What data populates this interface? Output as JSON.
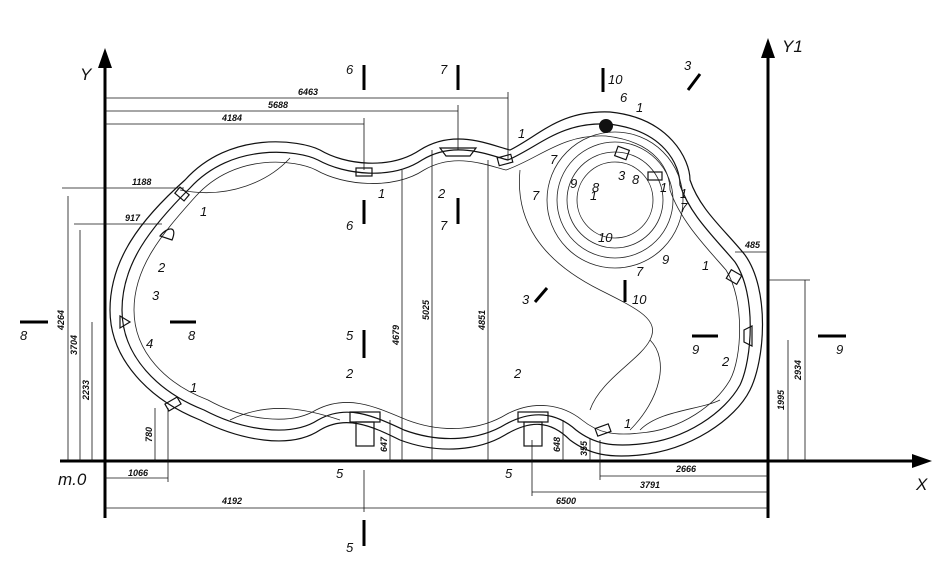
{
  "axes": {
    "x_label": "X",
    "y_label": "Y",
    "y1_label": "Y1",
    "origin_label": "m.0"
  },
  "dimensions_top": [
    "6463",
    "5688",
    "4184",
    "1188",
    "917"
  ],
  "dimensions_left": [
    "4264",
    "3704",
    "2233",
    "780",
    "1066"
  ],
  "dimensions_bottom": [
    "4192",
    "6500",
    "3791",
    "2666"
  ],
  "dimensions_inner": [
    "4679",
    "5025",
    "4851",
    "647",
    "648",
    "355",
    "485",
    "2934",
    "1995"
  ],
  "sections": [
    "5",
    "5",
    "5",
    "5",
    "6",
    "6",
    "7",
    "7",
    "8",
    "8",
    "9",
    "9",
    "10",
    "10",
    "3",
    "3"
  ],
  "equipment_labels": [
    "1",
    "1",
    "1",
    "1",
    "1",
    "1",
    "1",
    "1",
    "1",
    "1",
    "2",
    "2",
    "2",
    "2",
    "2",
    "3",
    "3",
    "4",
    "6",
    "7",
    "7",
    "7",
    "7",
    "8",
    "8",
    "9",
    "9",
    "10"
  ]
}
